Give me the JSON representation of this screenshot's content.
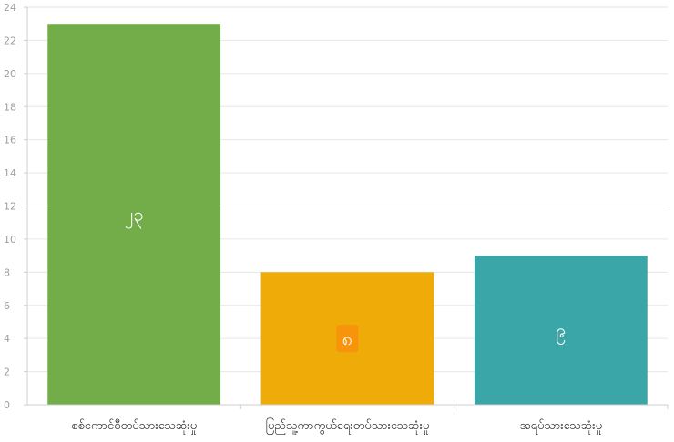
{
  "chart_data": {
    "type": "bar",
    "title": "",
    "xlabel": "",
    "ylabel": "",
    "categories": [
      "စစ်ကောင်စီတပ်သားသေဆုံးမှု",
      "ပြည်သူ့ကာကွယ်ရေးတပ်သားသေဆုံးမှု",
      "အရပ်သားသေဆုံးမှု"
    ],
    "values": [
      23,
      8,
      9
    ],
    "data_labels": [
      "၂၃",
      "၈",
      "၉"
    ],
    "colors": [
      "#72ad4a",
      "#efab08",
      "#3aa6a7"
    ],
    "label_badge_colors": [
      null,
      "#f7940b",
      null
    ],
    "ylim": [
      0,
      24
    ],
    "yticks": [
      0,
      2,
      4,
      6,
      8,
      10,
      12,
      14,
      16,
      18,
      20,
      22,
      24
    ],
    "grid": true,
    "legend": "none"
  }
}
